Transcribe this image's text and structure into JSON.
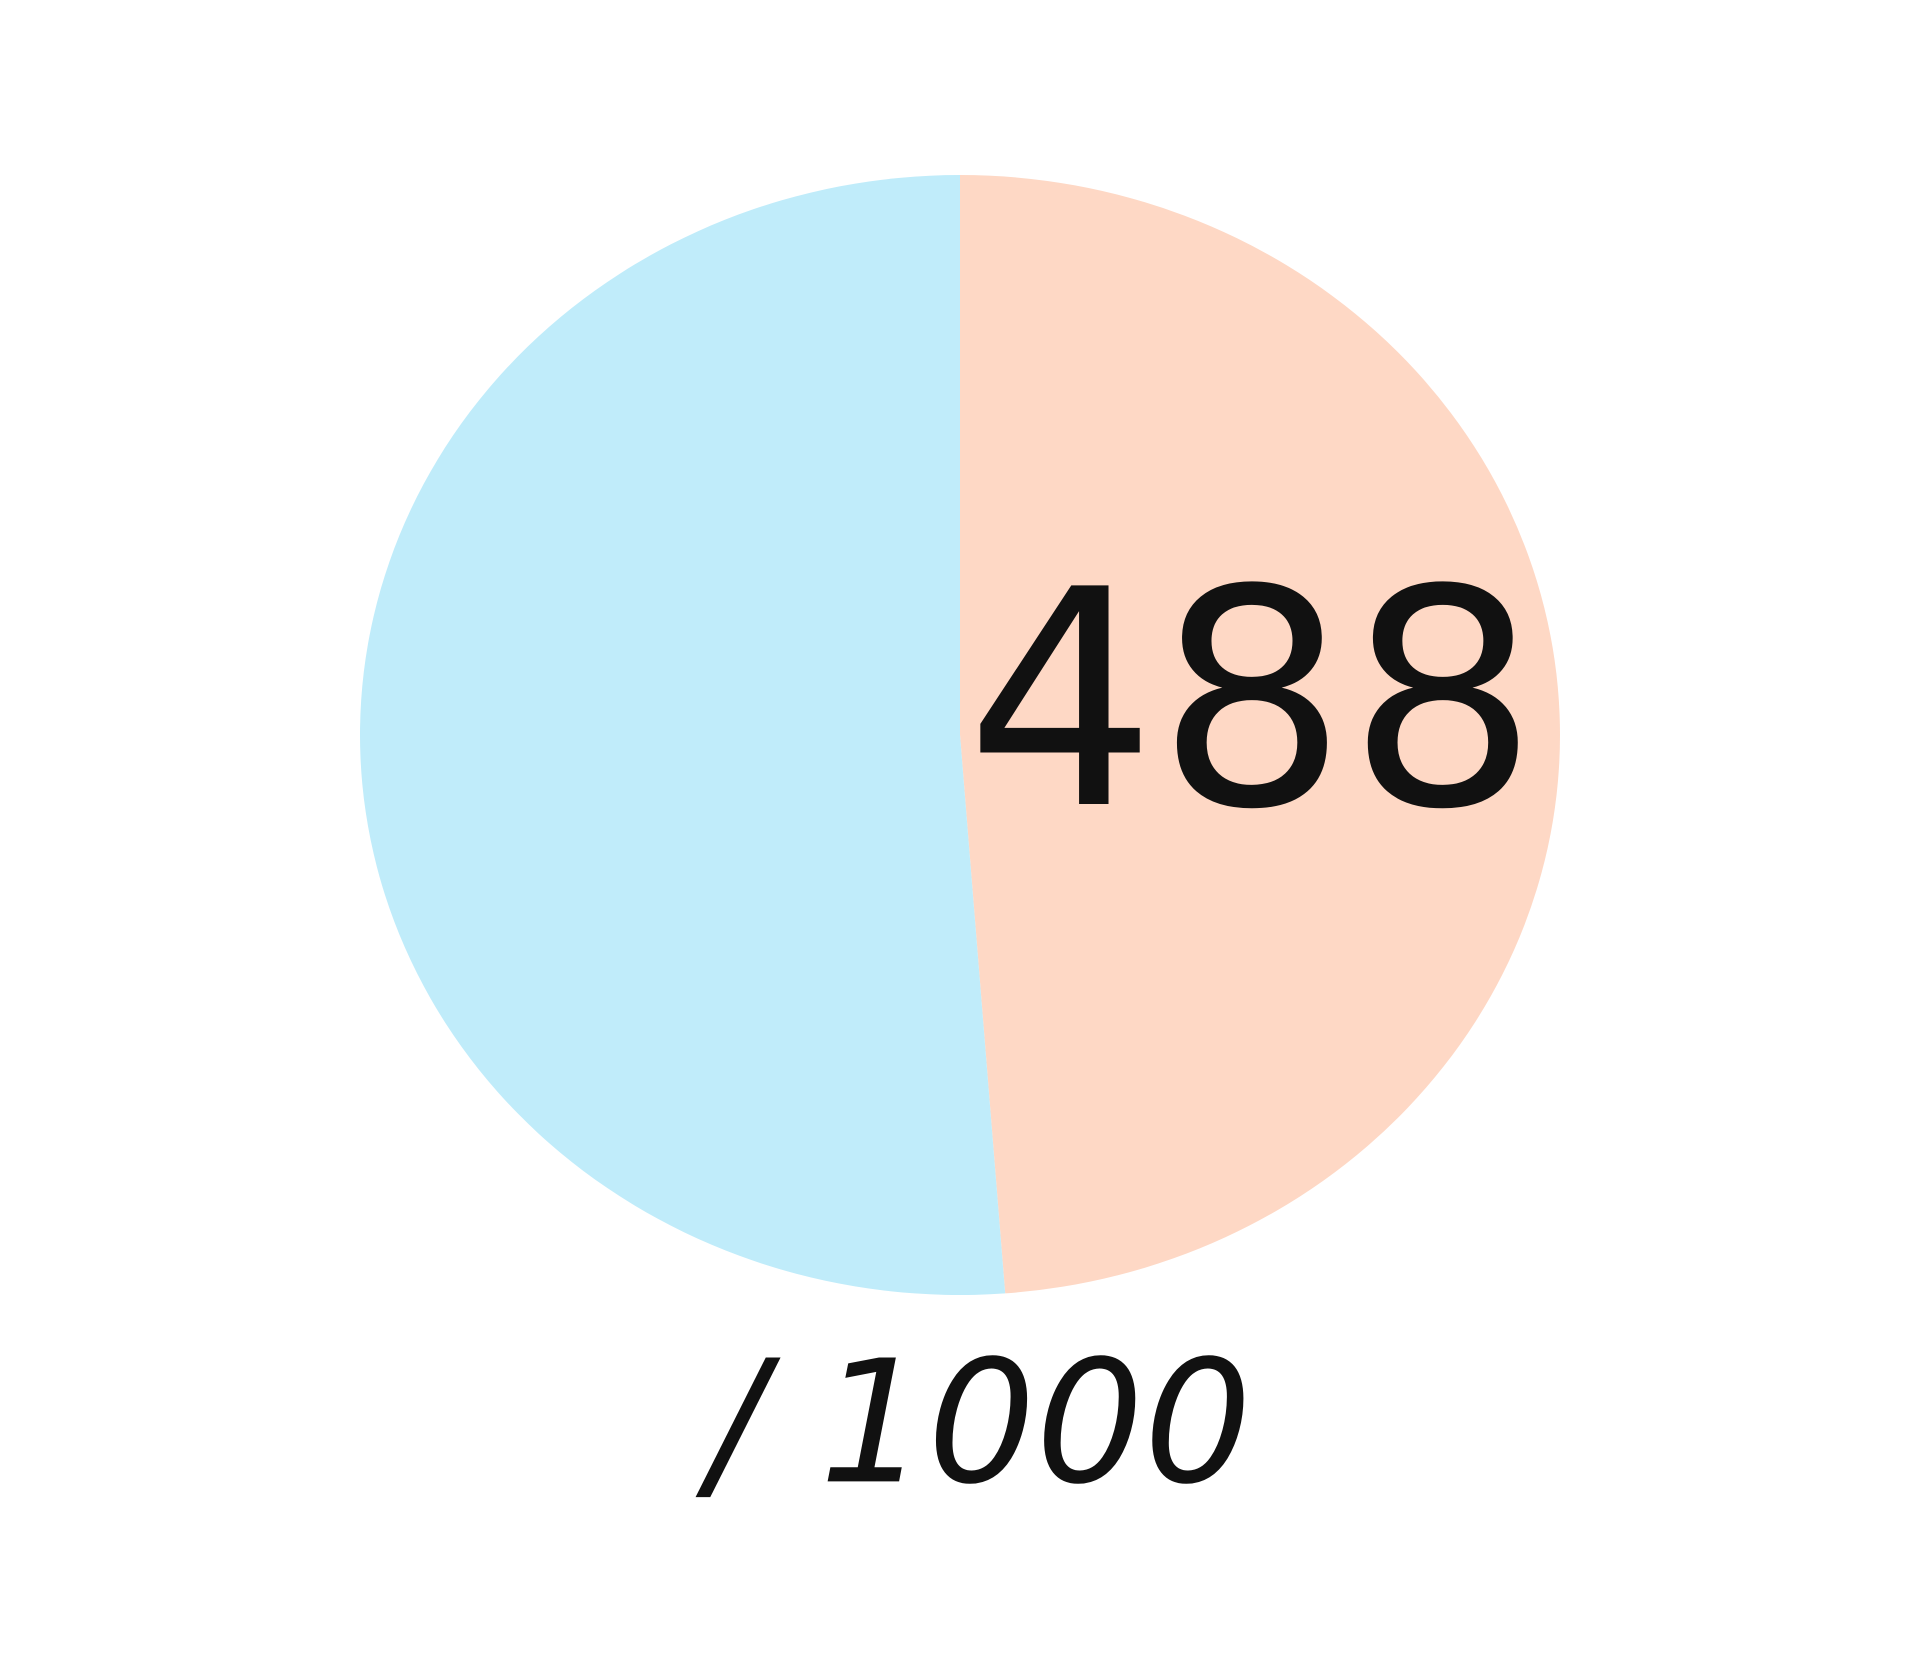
{
  "chart_data": {
    "type": "pie",
    "title": "",
    "total": 1000,
    "slices": [
      {
        "value": 488,
        "color": "#fed8c5",
        "label": "488"
      },
      {
        "value": 512,
        "color": "#c0ecfa",
        "label": ""
      }
    ],
    "center_label": "488",
    "total_label": "/ 1000"
  }
}
